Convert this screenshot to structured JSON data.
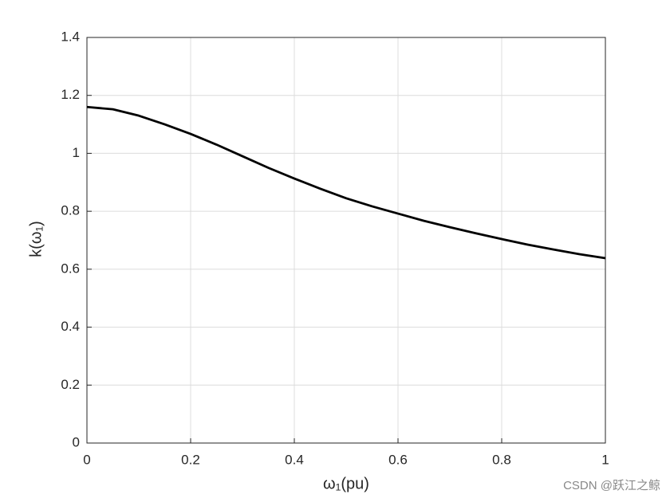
{
  "chart_data": {
    "type": "line",
    "xlabel": "ω₁(pu)",
    "ylabel": "k(ω₁)",
    "x": [
      0,
      0.05,
      0.1,
      0.15,
      0.2,
      0.25,
      0.3,
      0.35,
      0.4,
      0.45,
      0.5,
      0.55,
      0.6,
      0.65,
      0.7,
      0.75,
      0.8,
      0.85,
      0.9,
      0.95,
      1
    ],
    "series": [
      {
        "color": "#000000",
        "values": [
          1.16,
          1.152,
          1.13,
          1.1,
          1.067,
          1.03,
          0.99,
          0.95,
          0.913,
          0.878,
          0.845,
          0.817,
          0.792,
          0.767,
          0.745,
          0.724,
          0.704,
          0.685,
          0.668,
          0.652,
          0.638
        ]
      }
    ],
    "xlim": [
      0,
      1
    ],
    "xticks": [
      0,
      0.2,
      0.4,
      0.6,
      0.8,
      1
    ],
    "ylim": [
      0,
      1.4
    ],
    "yticks": [
      0,
      0.2,
      0.4,
      0.6,
      0.8,
      1,
      1.2,
      1.4
    ],
    "grid": true
  },
  "watermark": "CSDN @跃江之鲸"
}
